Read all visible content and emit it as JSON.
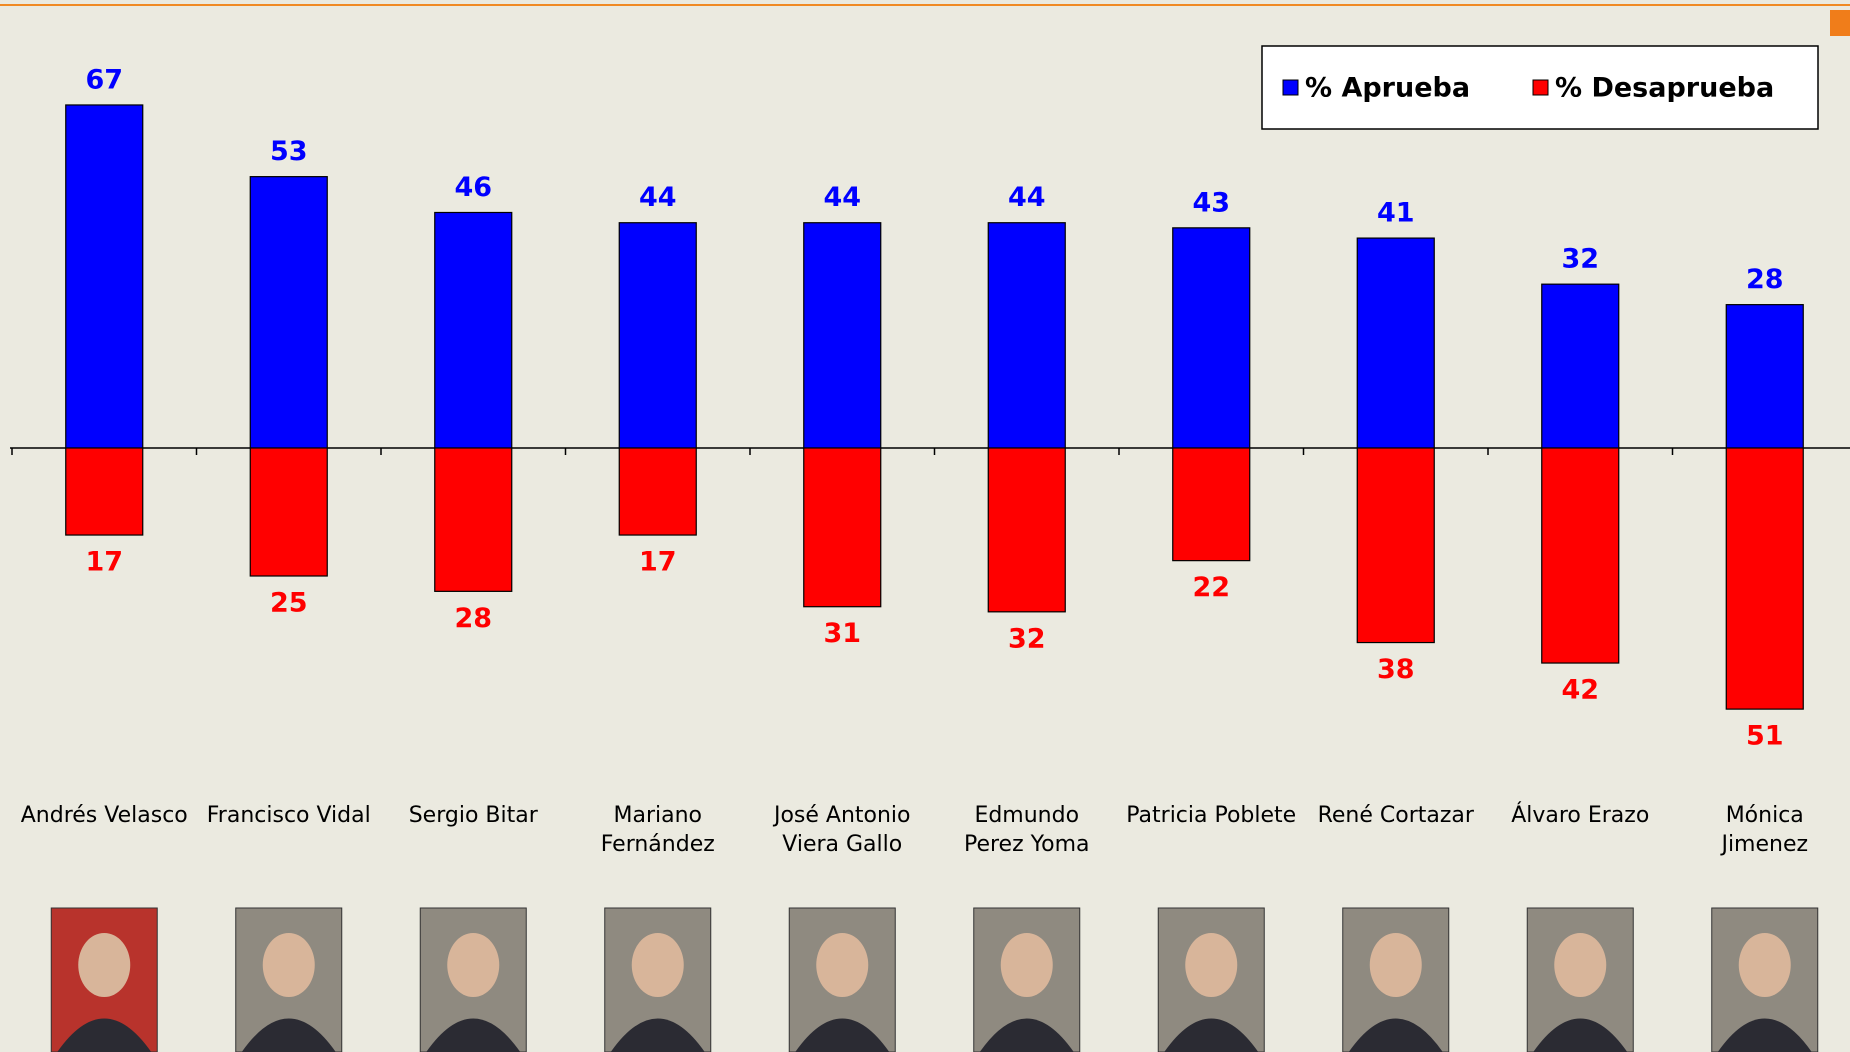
{
  "chart_data": {
    "type": "bar",
    "categories": [
      "Andrés Velasco",
      "Francisco Vidal",
      "Sergio Bitar",
      "Mariano\nFernández",
      "José Antonio\nViera Gallo",
      "Edmundo\nPerez Yoma",
      "Patricia Poblete",
      "René Cortazar",
      "Álvaro Erazo",
      "Mónica\nJimenez"
    ],
    "series": [
      {
        "name": "% Aprueba",
        "color": "#0000ff",
        "values": [
          67,
          53,
          46,
          44,
          44,
          44,
          43,
          41,
          32,
          28
        ]
      },
      {
        "name": "% Desaprueba",
        "color": "#ff0000",
        "values": [
          17,
          25,
          28,
          17,
          31,
          32,
          22,
          38,
          42,
          51
        ]
      }
    ],
    "legend": "top-right"
  }
}
